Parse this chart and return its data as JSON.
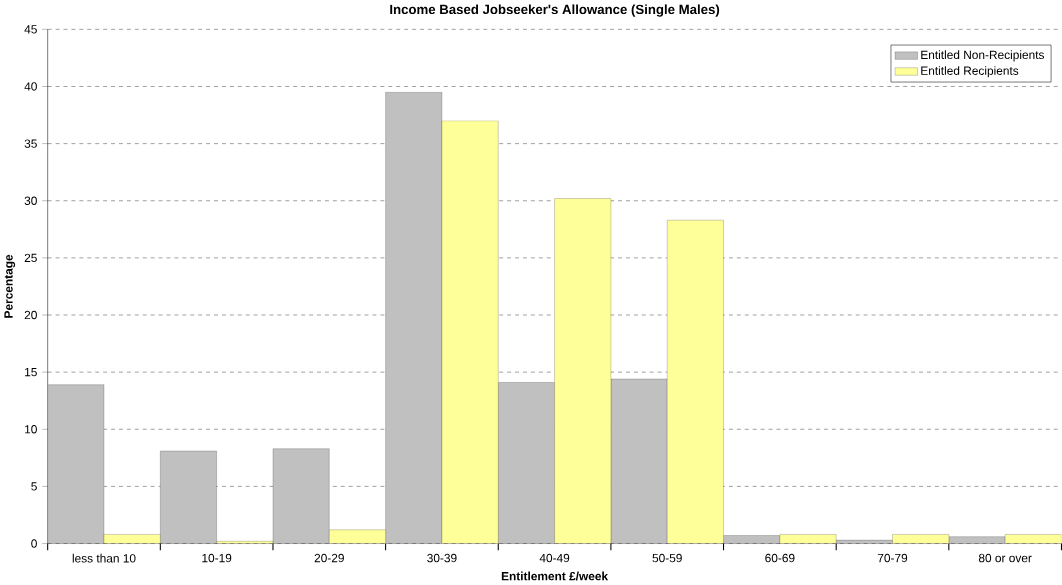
{
  "chart_data": {
    "type": "bar",
    "title": "Income Based Jobseeker's Allowance (Single Males)",
    "xlabel": "Entitlement £/week",
    "ylabel": "Percentage",
    "categories": [
      "less than 10",
      "10-19",
      "20-29",
      "30-39",
      "40-49",
      "50-59",
      "60-69",
      "70-79",
      "80 or over"
    ],
    "series": [
      {
        "name": "Entitled Non-Recipients",
        "color": "#c0c0c0",
        "values": [
          13.9,
          8.1,
          8.3,
          39.5,
          14.1,
          14.4,
          0.7,
          0.3,
          0.6
        ]
      },
      {
        "name": "Entitled Recipients",
        "color": "#ffff99",
        "values": [
          0.8,
          0.2,
          1.2,
          37.0,
          30.2,
          28.3,
          0.8,
          0.8,
          0.8
        ]
      }
    ],
    "ylim": [
      0,
      45
    ],
    "yticks": [
      0,
      5,
      10,
      15,
      20,
      25,
      30,
      35,
      40,
      45
    ],
    "grid": "y",
    "legend": "top right"
  }
}
